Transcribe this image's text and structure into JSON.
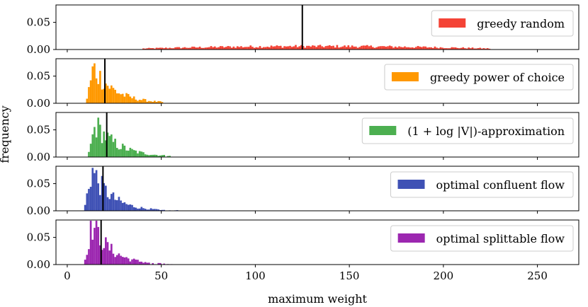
{
  "chart_data": {
    "type": "histogram",
    "xlabel": "maximum weight",
    "ylabel": "frequency",
    "xlim": [
      -6,
      272
    ],
    "xticks": [
      0,
      50,
      100,
      150,
      200,
      250
    ],
    "xtick_labels": [
      "0",
      "50",
      "100",
      "150",
      "200",
      "250"
    ],
    "ylim": [
      0,
      0.082
    ],
    "yticks": [
      0,
      0.05
    ],
    "ytick_labels": [
      "0.00",
      "0.05"
    ],
    "panels": [
      {
        "name": "greedy random",
        "legend_label": "greedy random",
        "color": "#f44336",
        "mean": 125,
        "dist": {
          "type": "flat",
          "from": 40,
          "to": 225,
          "peak": 0.006
        }
      },
      {
        "name": "greedy power of choice",
        "legend_label": "greedy power of choice",
        "color": "#ff9800",
        "mean": 20,
        "dist": {
          "type": "skewed",
          "start": 10,
          "mode": 14,
          "peak": 0.066,
          "decay": 11,
          "tail_end": 52
        }
      },
      {
        "name": "(1+log|V|)-approximation",
        "legend_label": "(1 + log |V|)-approximation",
        "color": "#4caf50",
        "mean": 21,
        "dist": {
          "type": "skewed",
          "start": 11,
          "mode": 15,
          "peak": 0.06,
          "decay": 12,
          "tail_end": 57
        }
      },
      {
        "name": "optimal confluent flow",
        "legend_label": "optimal confluent flow",
        "color": "#3f51b5",
        "mean": 19,
        "dist": {
          "type": "skewed",
          "start": 9,
          "mode": 13,
          "peak": 0.077,
          "decay": 10,
          "tail_end": 82
        }
      },
      {
        "name": "optimal splittable flow",
        "legend_label": "optimal splittable flow",
        "color": "#9c27b0",
        "mean": 18,
        "dist": {
          "type": "skewed",
          "start": 9,
          "mode": 13,
          "peak": 0.077,
          "decay": 10,
          "tail_end": 80
        }
      }
    ]
  }
}
